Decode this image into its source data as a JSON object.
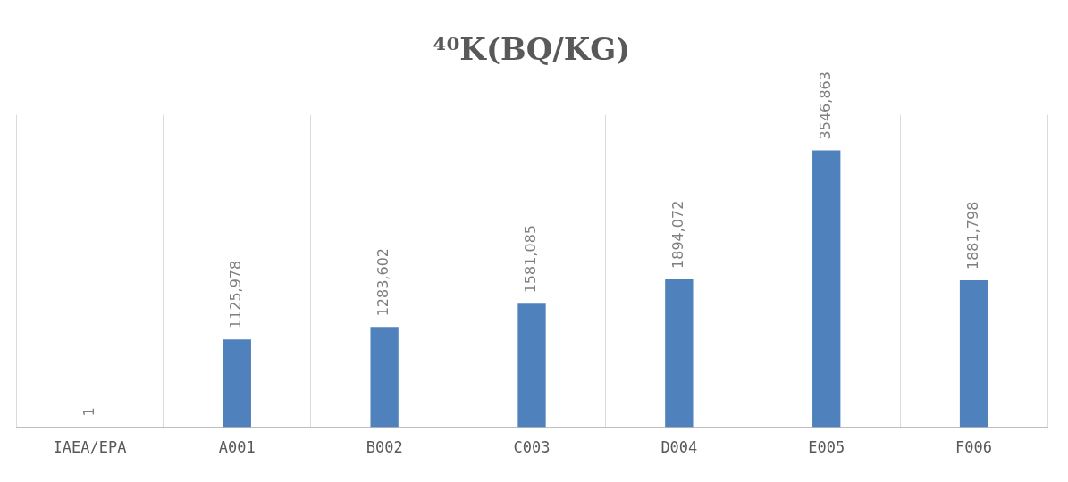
{
  "chart_data": {
    "type": "bar",
    "title": "⁴⁰K(BQ/KG)",
    "categories": [
      "IAEA/EPA",
      "A001",
      "B002",
      "C003",
      "D004",
      "E005",
      "F006"
    ],
    "values": [
      1,
      1125.978,
      1283.602,
      1581.085,
      1894.072,
      3546.863,
      1881.798
    ],
    "value_labels": [
      "1",
      "1125,978",
      "1283,602",
      "1581,085",
      "1894,072",
      "3546,863",
      "1881,798"
    ],
    "color": "#4f81bd",
    "grid": "x",
    "legend": false
  }
}
